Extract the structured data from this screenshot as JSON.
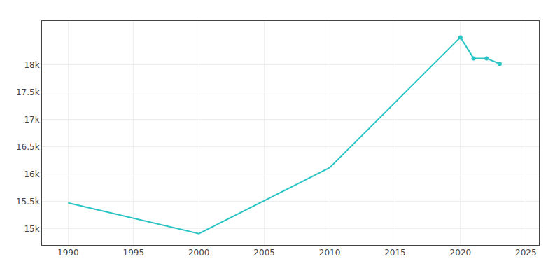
{
  "chart_data": {
    "type": "line",
    "x": [
      1990,
      2000,
      2010,
      2020,
      2021,
      2022,
      2023
    ],
    "series": [
      {
        "color": "#2AC4C4",
        "values": [
          15472,
          14910,
          16116,
          18500,
          18116,
          18116,
          18015
        ]
      },
      {
        "color": "#2AC4C4",
        "marker": "circle",
        "line_style": "none",
        "values": [
          null,
          null,
          null,
          18500,
          18116,
          18116,
          18015
        ]
      }
    ],
    "xlim": [
      1988,
      2026
    ],
    "ylim": [
      14700,
      18800
    ],
    "xticks": [
      1990,
      1995,
      2000,
      2005,
      2010,
      2015,
      2020,
      2025
    ],
    "yticks": [
      {
        "value": 15000,
        "label": "15k"
      },
      {
        "value": 15500,
        "label": "15.5k"
      },
      {
        "value": 16000,
        "label": "16k"
      },
      {
        "value": 16500,
        "label": "16.5k"
      },
      {
        "value": 17000,
        "label": "17k"
      },
      {
        "value": 17500,
        "label": "17.5k"
      },
      {
        "value": 18000,
        "label": "18k"
      }
    ],
    "grid": true
  }
}
